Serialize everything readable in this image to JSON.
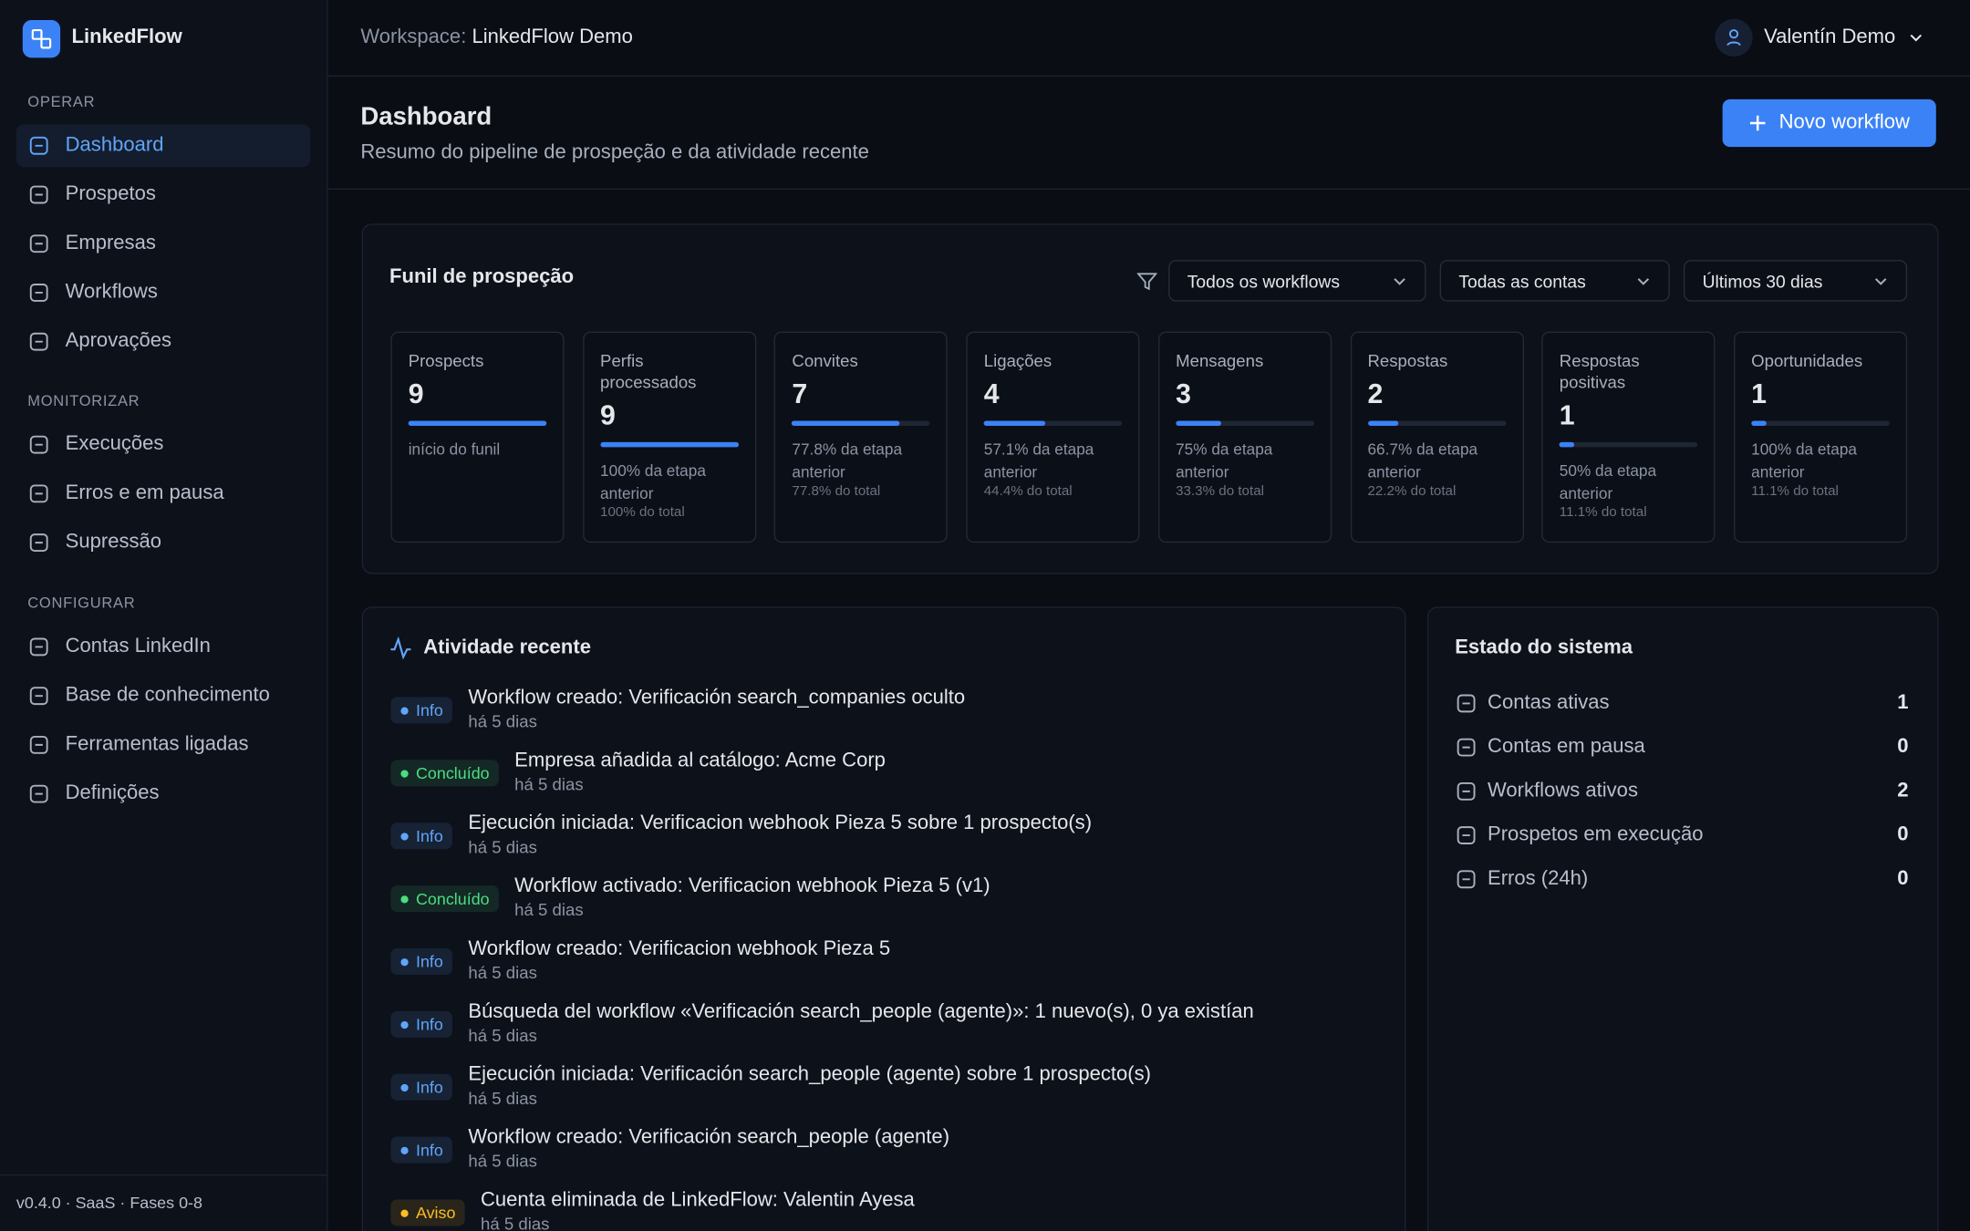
{
  "app": {
    "name": "LinkedFlow",
    "version": "v0.4.0 · SaaS · Fases 0-8"
  },
  "header": {
    "workspace_label": "Workspace:",
    "workspace": "LinkedFlow Demo",
    "user": "Valentín Demo"
  },
  "sidebar": {
    "sections": [
      {
        "title": "OPERAR",
        "items": [
          "Dashboard",
          "Prospetos",
          "Empresas",
          "Workflows",
          "Aprovações"
        ]
      },
      {
        "title": "MONITORIZAR",
        "items": [
          "Execuções",
          "Erros e em pausa",
          "Supressão"
        ]
      },
      {
        "title": "CONFIGURAR",
        "items": [
          "Contas LinkedIn",
          "Base de conhecimento",
          "Ferramentas ligadas",
          "Definições"
        ]
      }
    ]
  },
  "page": {
    "title": "Dashboard",
    "subtitle": "Resumo do pipeline de prospeção e da atividade recente",
    "button": "Novo workflow"
  },
  "funnel": {
    "title": "Funil de prospeção",
    "filters": [
      "Todos os workflows",
      "Todas as contas",
      "Últimos 30 dias"
    ],
    "stages": [
      {
        "label": "Prospects",
        "value": 9,
        "note": "início do funil"
      },
      {
        "label": "Perfis processados",
        "value": 9,
        "note": "100% da etapa anterior",
        "total": "100% do total"
      },
      {
        "label": "Convites",
        "value": 7,
        "note": "77.8% da etapa anterior",
        "total": "77.8% do total"
      },
      {
        "label": "Ligações",
        "value": 4,
        "note": "57.1% da etapa anterior",
        "total": "44.4% do total"
      },
      {
        "label": "Mensagens",
        "value": 3,
        "note": "75% da etapa anterior",
        "total": "33.3% do total"
      },
      {
        "label": "Respostas",
        "value": 2,
        "note": "66.7% da etapa anterior",
        "total": "22.2% do total"
      },
      {
        "label": "Respostas positivas",
        "value": 1,
        "note": "50% da etapa anterior",
        "total": "11.1% do total"
      },
      {
        "label": "Oportunidades",
        "value": 1,
        "note": "100% da etapa anterior",
        "total": "11.1% do total"
      }
    ]
  },
  "activity": {
    "title": "Atividade recente",
    "items": [
      {
        "badge": "Info",
        "color": "#60a5fa",
        "text": "Workflow creado: Verificación search_companies oculto",
        "time": "há 5 dias"
      },
      {
        "badge": "Concluído",
        "color": "#4ade80",
        "text": "Empresa añadida al catálogo: Acme Corp",
        "time": "há 5 dias"
      },
      {
        "badge": "Info",
        "color": "#60a5fa",
        "text": "Ejecución iniciada: Verificacion webhook Pieza 5 sobre 1 prospecto(s)",
        "time": "há 5 dias"
      },
      {
        "badge": "Concluído",
        "color": "#4ade80",
        "text": "Workflow activado: Verificacion webhook Pieza 5 (v1)",
        "time": "há 5 dias"
      },
      {
        "badge": "Info",
        "color": "#60a5fa",
        "text": "Workflow creado: Verificacion webhook Pieza 5",
        "time": "há 5 dias"
      },
      {
        "badge": "Info",
        "color": "#60a5fa",
        "text": "Búsqueda del workflow «Verificación search_people (agente)»: 1 nuevo(s), 0 ya existían",
        "time": "há 5 dias"
      },
      {
        "badge": "Info",
        "color": "#60a5fa",
        "text": "Ejecución iniciada: Verificación search_people (agente) sobre 1 prospecto(s)",
        "time": "há 5 dias"
      },
      {
        "badge": "Info",
        "color": "#60a5fa",
        "text": "Workflow creado: Verificación search_people (agente)",
        "time": "há 5 dias"
      },
      {
        "badge": "Aviso",
        "color": "#fbbf24",
        "text": "Cuenta eliminada de LinkedFlow: Valentin Ayesa",
        "time": "há 5 dias"
      }
    ]
  },
  "system": {
    "title": "Estado do sistema",
    "rows": [
      {
        "label": "Contas ativas",
        "value": 1
      },
      {
        "label": "Contas em pausa",
        "value": 0
      },
      {
        "label": "Workflows ativos",
        "value": 2
      },
      {
        "label": "Prospetos em execução",
        "value": 0
      },
      {
        "label": "Erros (24h)",
        "value": 0
      }
    ]
  }
}
